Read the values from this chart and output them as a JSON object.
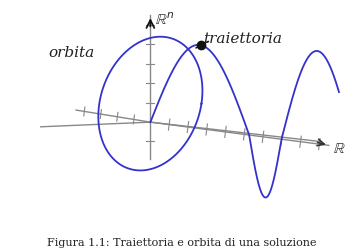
{
  "title": "Figura 1.1: Traiettoria e orbita di una soluzione",
  "label_orbita": "orbita",
  "label_traiettoria": "traiettoria",
  "label_Rn": "$\\mathbb{R}^n$",
  "label_R": "$\\mathbb{R}$",
  "curve_color": "#3333cc",
  "axis_color": "#888888",
  "dot_color": "#111111",
  "background_color": "#ffffff",
  "text_color": "#222222",
  "title_fontsize": 8,
  "label_fontsize": 11,
  "axis_lw": 1.0,
  "curve_lw": 1.3
}
